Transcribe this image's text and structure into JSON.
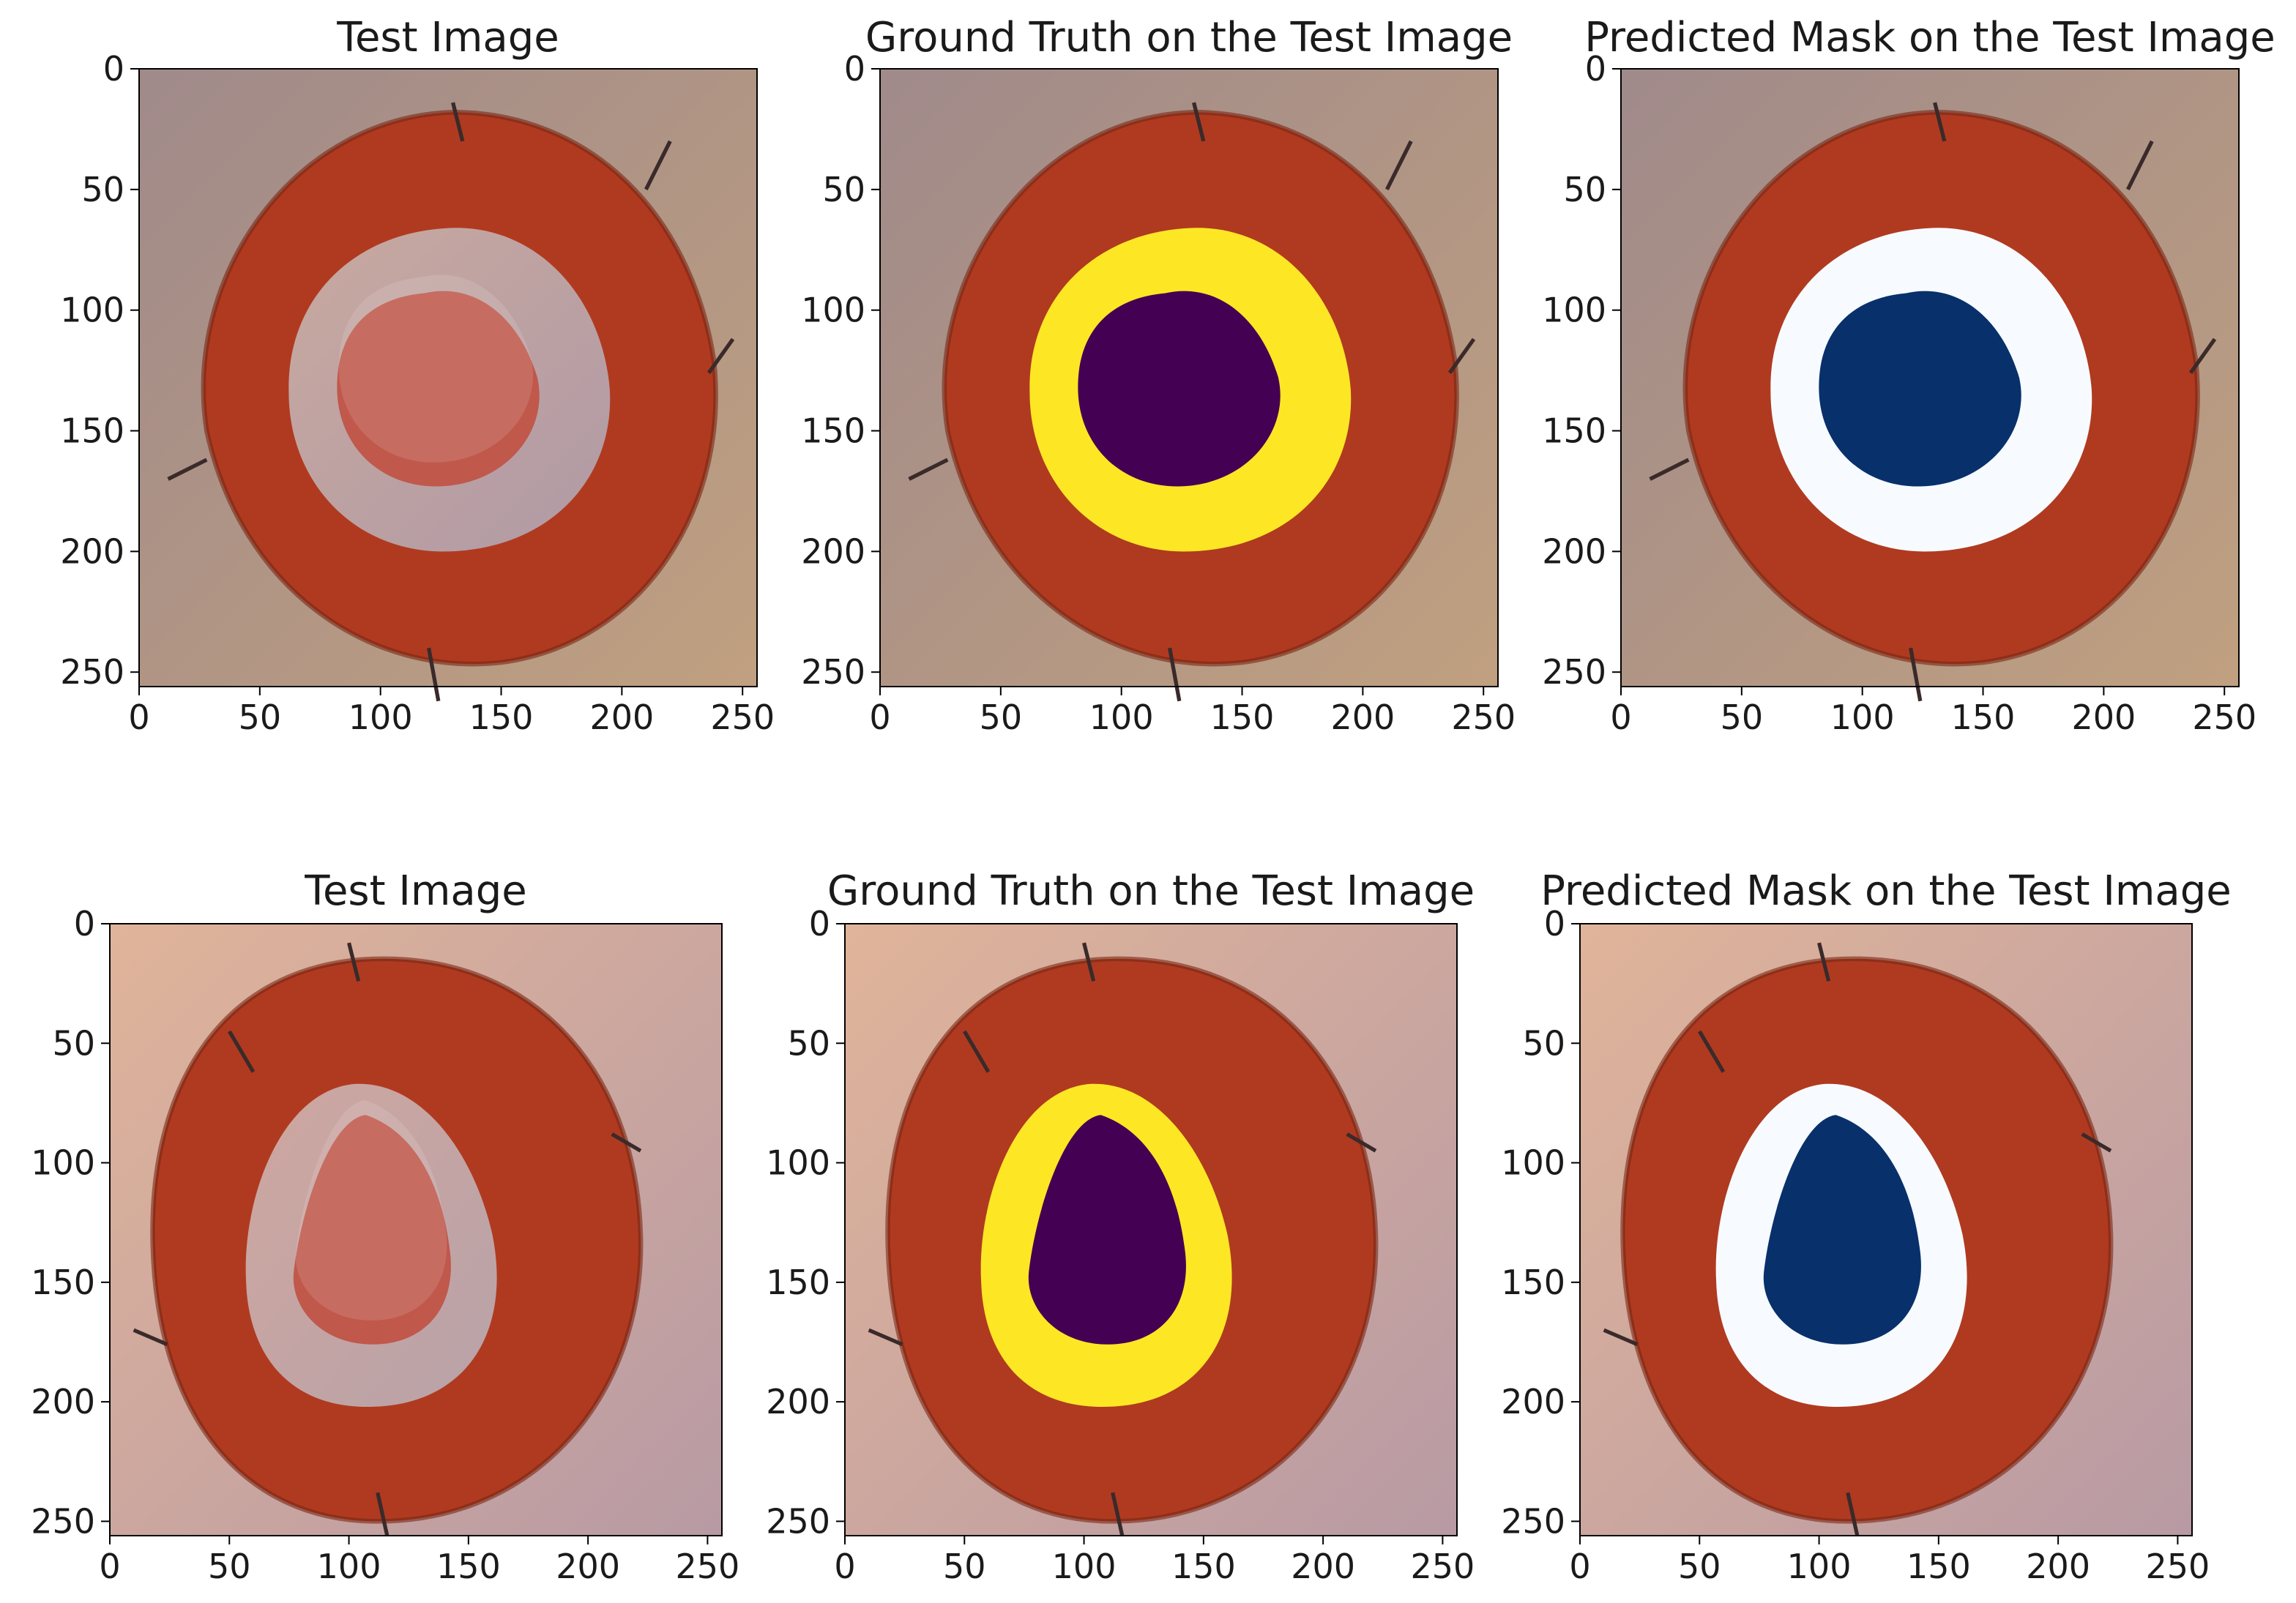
{
  "figure": {
    "rows": [
      {
        "panels": [
          {
            "title": "Test Image",
            "kind": "photo"
          },
          {
            "title": "Ground Truth on the Test Image",
            "kind": "ground_truth"
          },
          {
            "title": "Predicted Mask on the Test Image",
            "kind": "predicted_mask"
          }
        ]
      },
      {
        "panels": [
          {
            "title": "Test Image",
            "kind": "photo"
          },
          {
            "title": "Ground Truth on the Test Image",
            "kind": "ground_truth"
          },
          {
            "title": "Predicted Mask on the Test Image",
            "kind": "predicted_mask"
          }
        ]
      }
    ],
    "x_ticks": [
      "0",
      "50",
      "100",
      "150",
      "200",
      "250"
    ],
    "y_ticks": [
      "0",
      "50",
      "100",
      "150",
      "200",
      "250"
    ],
    "colors": {
      "skin_top": "#b49a86",
      "skin_bottom": "#d9ad93",
      "tissue_ring": "#b03a20",
      "wound_bed_top": "#c9a9a0",
      "wound_bed_bottom": "#cfa7a0",
      "wound_core": "#c0584c",
      "gt_outer": "#fde725",
      "gt_inner": "#440154",
      "pred_outer": "#f7fbff",
      "pred_inner": "#08306b"
    }
  }
}
